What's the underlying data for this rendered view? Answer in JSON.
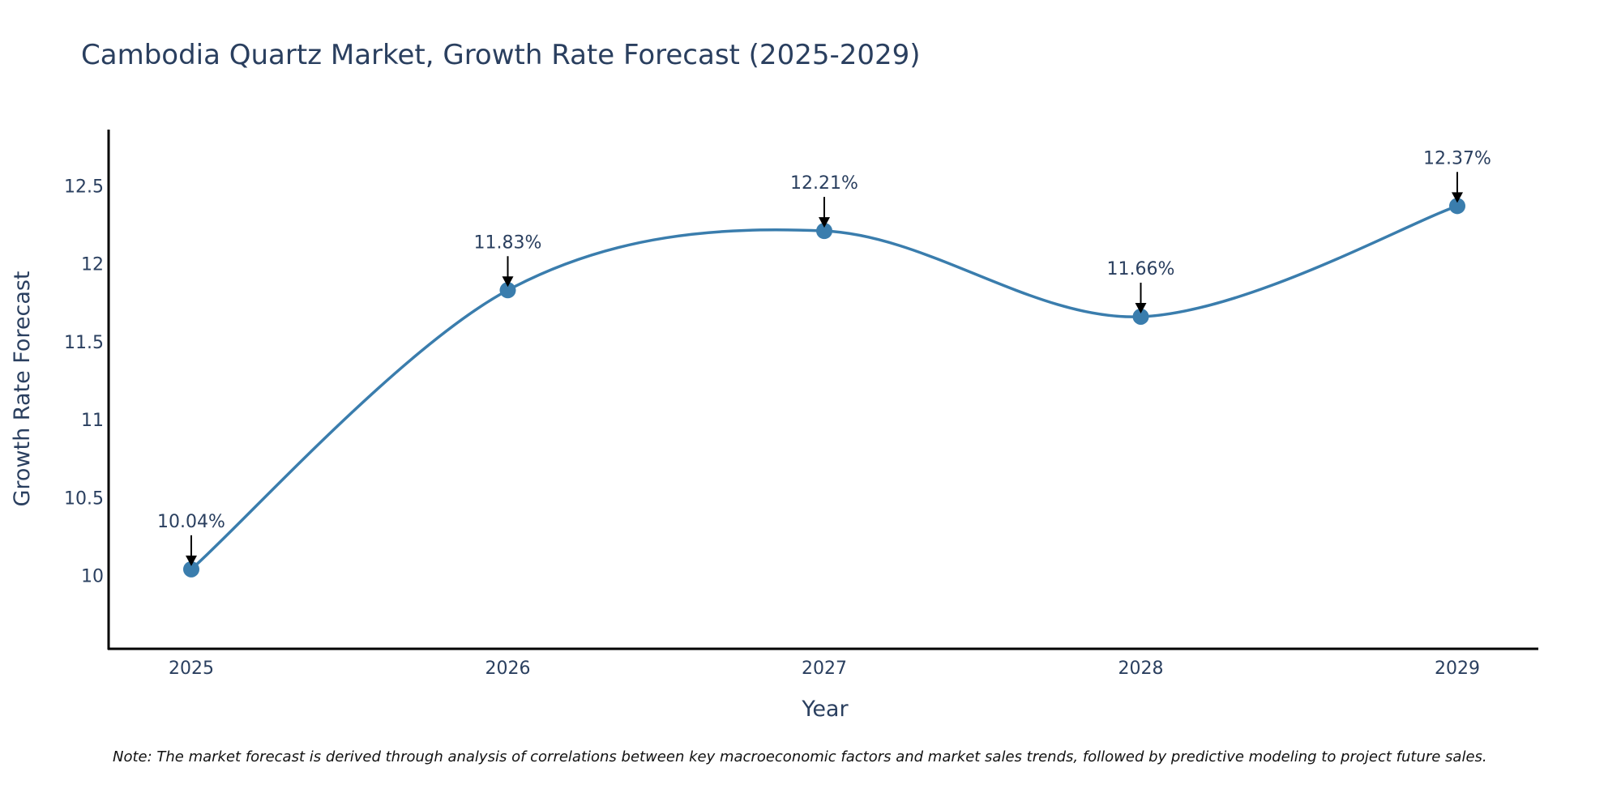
{
  "chart_data": {
    "type": "line",
    "title": "Cambodia Quartz Market, Growth Rate Forecast (2025-2029)",
    "xlabel": "Year",
    "ylabel": "Growth Rate Forecast",
    "categories": [
      "2025",
      "2026",
      "2027",
      "2028",
      "2029"
    ],
    "series": [
      {
        "name": "Growth Rate Forecast",
        "values": [
          10.04,
          11.83,
          12.21,
          11.66,
          12.37
        ],
        "labels": [
          "10.04%",
          "11.83%",
          "12.21%",
          "11.66%",
          "12.37%"
        ]
      }
    ],
    "y_ticks": [
      10,
      10.5,
      11,
      11.5,
      12,
      12.5
    ],
    "y_tick_labels": [
      "10",
      "10.5",
      "11",
      "11.5",
      "12",
      "12.5"
    ],
    "ylim": [
      9.53,
      12.86
    ],
    "grid": false,
    "line_shape": "spline",
    "colors": {
      "line": "#3a7dad",
      "marker": "#3a7dad",
      "arrow": "#000000",
      "text": "#2a3f5f",
      "axis": "#000000"
    },
    "note": "Note: The market forecast is derived through analysis of correlations between key macroeconomic factors and market sales trends, followed by predictive modeling to project future sales."
  }
}
